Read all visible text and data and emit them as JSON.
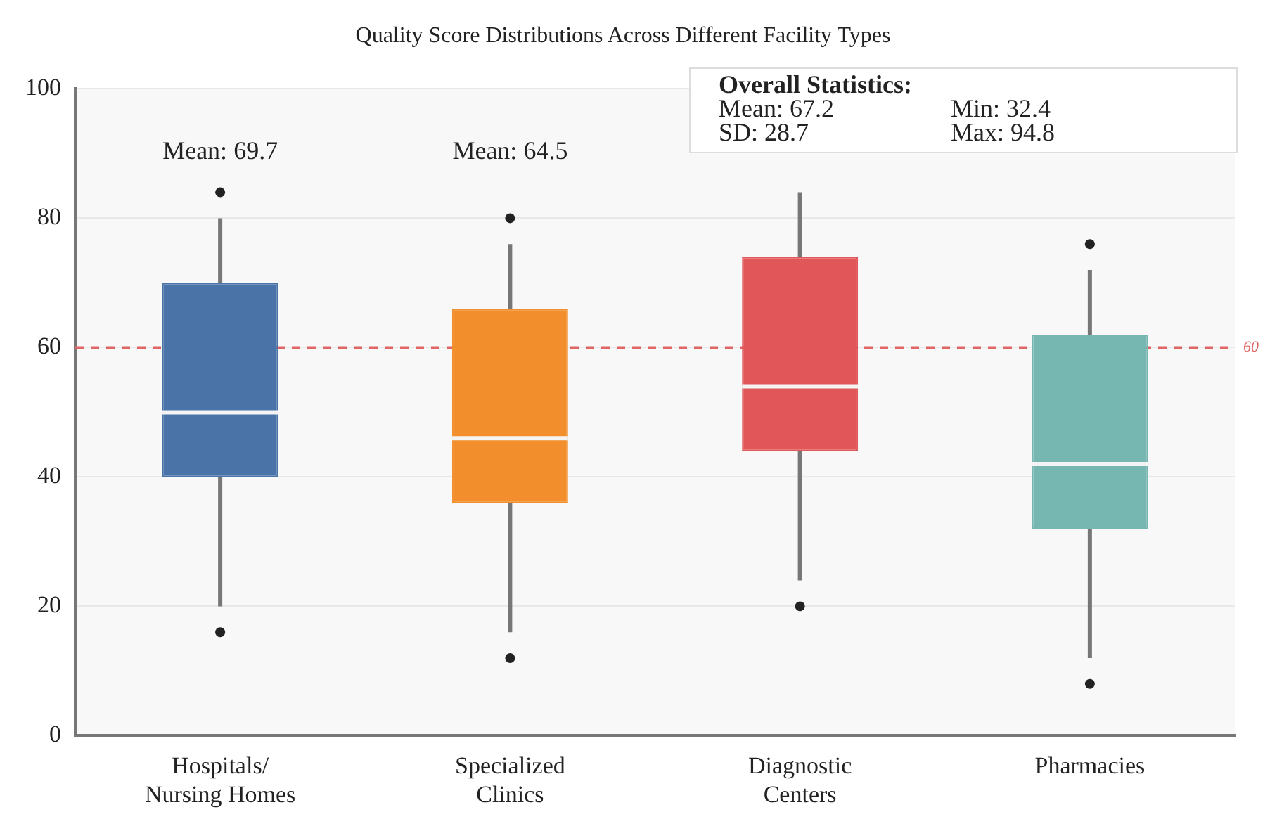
{
  "chart_data": {
    "type": "box",
    "title": "Quality Score Distributions Across Different Facility Types",
    "categories": [
      "Hospitals/\nNursing Homes",
      "Specialized\nClinics",
      "Diagnostic\nCenters",
      "Pharmacies"
    ],
    "colors": [
      "#4a74a8",
      "#f28e2b",
      "#e15759",
      "#76b7b2"
    ],
    "boxes": [
      {
        "low": 20,
        "q1": 40,
        "median": 50,
        "q3": 70,
        "high": 80,
        "outliers": [
          84,
          16
        ]
      },
      {
        "low": 16,
        "q1": 36,
        "median": 46,
        "q3": 66,
        "high": 76,
        "outliers": [
          80,
          12
        ]
      },
      {
        "low": 24,
        "q1": 44,
        "median": 54,
        "q3": 74,
        "high": 84,
        "outliers": [
          20
        ]
      },
      {
        "low": 12,
        "q1": 32,
        "median": 42,
        "q3": 62,
        "high": 72,
        "outliers": [
          76,
          8
        ]
      }
    ],
    "ylim": [
      0,
      100
    ],
    "yticks": [
      0,
      20,
      40,
      60,
      80,
      100
    ],
    "grid": "y",
    "legend": false,
    "ref_lines": [
      {
        "axis": "y",
        "value": 60,
        "label": "60",
        "color": "#e06666",
        "line_style": "dashed"
      }
    ],
    "annotations": [
      "Mean: 69.7",
      "Mean: 64.5",
      "Overall Statistics:",
      "Mean: 67.2",
      "Min: 32.4",
      "SD: 28.7",
      "Max: 94.8"
    ]
  }
}
